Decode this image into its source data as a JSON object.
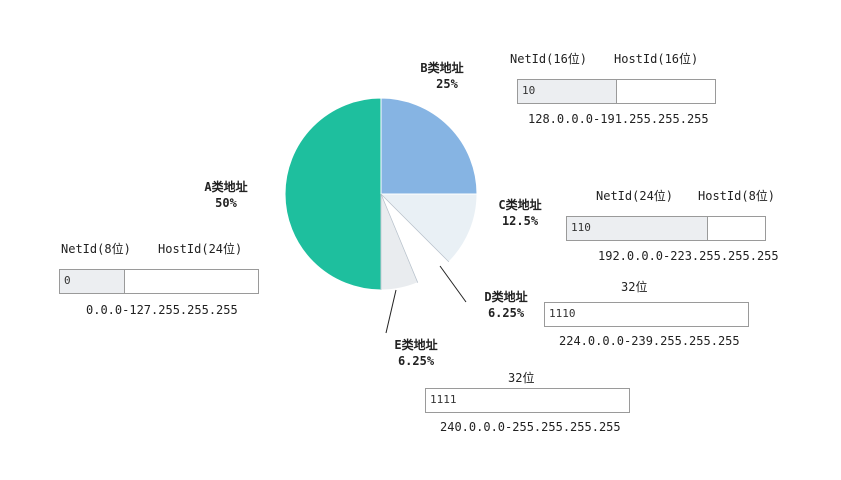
{
  "chart_data": {
    "type": "pie",
    "slices": [
      {
        "name": "A类地址",
        "value": 50,
        "label": "50%",
        "color": "#1ebf9e"
      },
      {
        "name": "B类地址",
        "value": 25,
        "label": "25%",
        "color": "#86b4e3"
      },
      {
        "name": "C类地址",
        "value": 12.5,
        "label": "12.5%",
        "color": "#e9f0f5"
      },
      {
        "name": "D类地址",
        "value": 6.25,
        "label": "6.25%",
        "color": "#ffffff"
      },
      {
        "name": "E类地址",
        "value": 6.25,
        "label": "6.25%",
        "color": "#e9ecef"
      }
    ]
  },
  "classA": {
    "net_label": "NetId(8位)",
    "host_label": "HostId(24位)",
    "prefix": "0",
    "range": "0.0.0-127.255.255.255",
    "net_fraction": 0.33
  },
  "classB": {
    "net_label": "NetId(16位)",
    "host_label": "HostId(16位)",
    "prefix": "10",
    "range": "128.0.0.0-191.255.255.255",
    "net_fraction": 0.5
  },
  "classC": {
    "net_label": "NetId(24位)",
    "host_label": "HostId(8位)",
    "prefix": "110",
    "range": "192.0.0.0-223.255.255.255",
    "net_fraction": 0.71
  },
  "classD": {
    "bits_label": "32位",
    "prefix": "1110",
    "range": "224.0.0.0-239.255.255.255"
  },
  "classE": {
    "bits_label": "32位",
    "prefix": "1111",
    "range": "240.0.0.0-255.255.255.255"
  }
}
